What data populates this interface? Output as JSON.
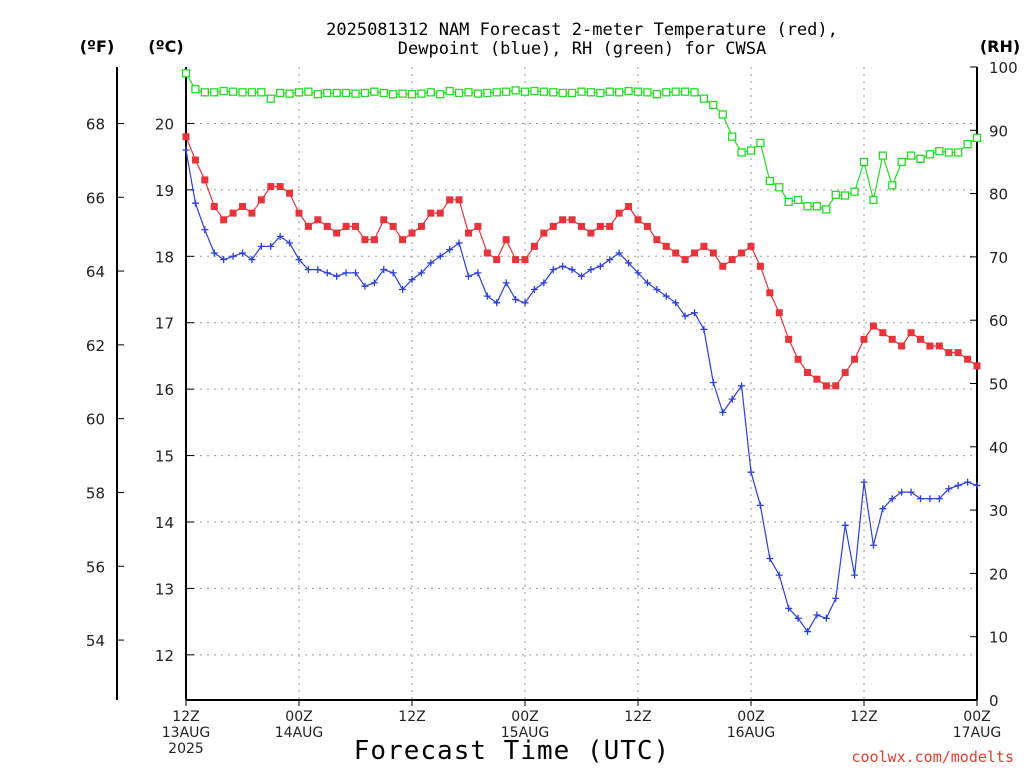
{
  "chart_data": {
    "type": "line",
    "title": [
      "2025081312 NAM Forecast 2-meter Temperature (red),",
      "Dewpoint (blue), RH (green) for CWSA"
    ],
    "xlabel": "Forecast Time (UTC)",
    "credit": "coolwx.com/modelts",
    "unit_f": "(ºF)",
    "unit_c": "(ºC)",
    "unit_rh": "(RH)",
    "x_ticks": [
      {
        "hour": 0,
        "line1": "12Z",
        "line2": "13AUG",
        "line3": "2025"
      },
      {
        "hour": 12,
        "line1": "00Z",
        "line2": "14AUG",
        "line3": ""
      },
      {
        "hour": 24,
        "line1": "12Z",
        "line2": "",
        "line3": ""
      },
      {
        "hour": 36,
        "line1": "00Z",
        "line2": "15AUG",
        "line3": ""
      },
      {
        "hour": 48,
        "line1": "12Z",
        "line2": "",
        "line3": ""
      },
      {
        "hour": 60,
        "line1": "00Z",
        "line2": "16AUG",
        "line3": ""
      },
      {
        "hour": 72,
        "line1": "12Z",
        "line2": "",
        "line3": ""
      },
      {
        "hour": 84,
        "line1": "00Z",
        "line2": "17AUG",
        "line3": ""
      }
    ],
    "xlim": [
      0,
      84
    ],
    "c_ticks": [
      12,
      13,
      14,
      15,
      16,
      17,
      18,
      19,
      20
    ],
    "f_ticks": [
      54,
      56,
      58,
      60,
      62,
      64,
      66,
      68
    ],
    "rh_ticks": [
      0,
      10,
      20,
      30,
      40,
      50,
      60,
      70,
      80,
      90,
      100
    ],
    "ylim_c": [
      11.32,
      20.85
    ],
    "ylim_rh": [
      0,
      100
    ],
    "series": [
      {
        "name": "Temperature",
        "color": "#e8333a",
        "marker": "filled-square",
        "x": [
          0,
          1,
          2,
          3,
          4,
          5,
          6,
          7,
          8,
          9,
          10,
          11,
          12,
          13,
          14,
          15,
          16,
          17,
          18,
          19,
          20,
          21,
          22,
          23,
          24,
          25,
          26,
          27,
          28,
          29,
          30,
          31,
          32,
          33,
          34,
          35,
          36,
          37,
          38,
          39,
          40,
          41,
          42,
          43,
          44,
          45,
          46,
          47,
          48,
          49,
          50,
          51,
          52,
          53,
          54,
          55,
          56,
          57,
          58,
          59,
          60,
          61,
          62,
          63,
          64,
          65,
          66,
          67,
          68,
          69,
          70,
          71,
          72,
          73,
          74,
          75,
          76,
          77,
          78,
          79,
          80,
          81,
          82,
          83,
          84
        ],
        "values": [
          19.8,
          19.45,
          19.15,
          18.75,
          18.55,
          18.65,
          18.75,
          18.65,
          18.85,
          19.05,
          19.05,
          18.95,
          18.65,
          18.45,
          18.55,
          18.45,
          18.35,
          18.45,
          18.45,
          18.25,
          18.25,
          18.55,
          18.45,
          18.25,
          18.35,
          18.45,
          18.65,
          18.65,
          18.85,
          18.85,
          18.35,
          18.45,
          18.05,
          17.95,
          18.25,
          17.95,
          17.95,
          18.15,
          18.35,
          18.45,
          18.55,
          18.55,
          18.45,
          18.35,
          18.45,
          18.45,
          18.65,
          18.75,
          18.55,
          18.45,
          18.25,
          18.15,
          18.05,
          17.95,
          18.05,
          18.15,
          18.05,
          17.85,
          17.95,
          18.05,
          18.15,
          17.85,
          17.45,
          17.15,
          16.75,
          16.45,
          16.25,
          16.15,
          16.05,
          16.05,
          16.25,
          16.45,
          16.75,
          16.95,
          16.85,
          16.75,
          16.65,
          16.85,
          16.75,
          16.65,
          16.65,
          16.55,
          16.55,
          16.45,
          16.35
        ]
      },
      {
        "name": "Dewpoint",
        "color": "#2c3fe0",
        "marker": "plus",
        "x": [
          0,
          1,
          2,
          3,
          4,
          5,
          6,
          7,
          8,
          9,
          10,
          11,
          12,
          13,
          14,
          15,
          16,
          17,
          18,
          19,
          20,
          21,
          22,
          23,
          24,
          25,
          26,
          27,
          28,
          29,
          30,
          31,
          32,
          33,
          34,
          35,
          36,
          37,
          38,
          39,
          40,
          41,
          42,
          43,
          44,
          45,
          46,
          47,
          48,
          49,
          50,
          51,
          52,
          53,
          54,
          55,
          56,
          57,
          58,
          59,
          60,
          61,
          62,
          63,
          64,
          65,
          66,
          67,
          68,
          69,
          70,
          71,
          72,
          73,
          74,
          75,
          76,
          77,
          78,
          79,
          80,
          81,
          82,
          83,
          84
        ],
        "values": [
          19.6,
          18.8,
          18.4,
          18.05,
          17.95,
          18.0,
          18.05,
          17.95,
          18.15,
          18.15,
          18.3,
          18.2,
          17.95,
          17.8,
          17.8,
          17.75,
          17.7,
          17.75,
          17.75,
          17.55,
          17.6,
          17.8,
          17.75,
          17.5,
          17.65,
          17.75,
          17.9,
          18.0,
          18.1,
          18.2,
          17.7,
          17.75,
          17.4,
          17.3,
          17.6,
          17.35,
          17.3,
          17.5,
          17.6,
          17.8,
          17.85,
          17.8,
          17.7,
          17.8,
          17.85,
          17.95,
          18.05,
          17.9,
          17.75,
          17.6,
          17.5,
          17.4,
          17.3,
          17.1,
          17.15,
          16.9,
          16.1,
          15.65,
          15.85,
          16.05,
          14.75,
          14.25,
          13.45,
          13.2,
          12.7,
          12.55,
          12.35,
          12.6,
          12.55,
          12.85,
          13.95,
          13.2,
          14.6,
          13.65,
          14.2,
          14.35,
          14.45,
          14.45,
          14.35,
          14.35,
          14.35,
          14.5,
          14.55,
          14.6,
          14.55
        ]
      },
      {
        "name": "RH",
        "color": "#22dd22",
        "marker": "open-square",
        "x": [
          0,
          1,
          2,
          3,
          4,
          5,
          6,
          7,
          8,
          9,
          10,
          11,
          12,
          13,
          14,
          15,
          16,
          17,
          18,
          19,
          20,
          21,
          22,
          23,
          24,
          25,
          26,
          27,
          28,
          29,
          30,
          31,
          32,
          33,
          34,
          35,
          36,
          37,
          38,
          39,
          40,
          41,
          42,
          43,
          44,
          45,
          46,
          47,
          48,
          49,
          50,
          51,
          52,
          53,
          54,
          55,
          56,
          57,
          58,
          59,
          60,
          61,
          62,
          63,
          64,
          65,
          66,
          67,
          68,
          69,
          70,
          71,
          72,
          73,
          74,
          75,
          76,
          77,
          78,
          79,
          80,
          81,
          82,
          83,
          84
        ],
        "values": [
          99,
          96.5,
          96,
          96,
          96.2,
          96.1,
          96,
          96,
          96,
          95,
          95.9,
          95.8,
          96,
          96.1,
          95.7,
          95.9,
          95.9,
          95.9,
          95.8,
          95.9,
          96.1,
          95.9,
          95.7,
          95.8,
          95.7,
          95.8,
          96,
          95.7,
          96.2,
          95.9,
          96,
          95.8,
          95.9,
          96,
          96.1,
          96.3,
          96.1,
          96.2,
          96.1,
          96,
          95.9,
          95.9,
          96.1,
          96,
          95.9,
          96.1,
          96,
          96.2,
          96.1,
          96,
          95.7,
          96,
          96.1,
          96.1,
          96,
          95,
          94,
          92.5,
          89,
          86.5,
          86.8,
          88,
          82,
          81,
          78.7,
          79,
          78,
          78,
          77.5,
          79.8,
          79.7,
          80.3,
          85,
          79,
          86,
          81.3,
          85,
          86,
          85.5,
          86.2,
          86.7,
          86.5,
          86.5,
          87.8,
          88.8
        ]
      }
    ]
  }
}
